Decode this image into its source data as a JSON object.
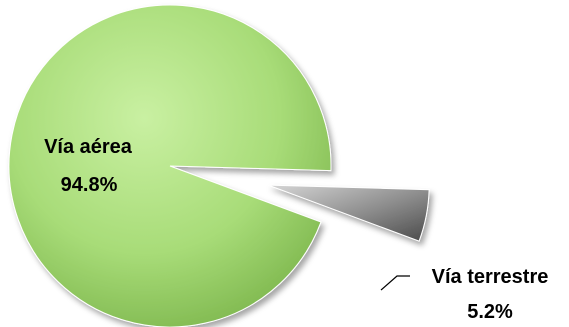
{
  "chart_data": {
    "type": "pie",
    "title": "",
    "categories": [
      "Vía aérea",
      "Vía terrestre"
    ],
    "values": [
      94.8,
      5.2
    ],
    "value_labels": [
      "94.8%",
      "5.2%"
    ],
    "exploded": [
      false,
      true
    ],
    "colors": [
      "#a8dc78",
      "#8a8a8a"
    ],
    "legend": "none"
  }
}
